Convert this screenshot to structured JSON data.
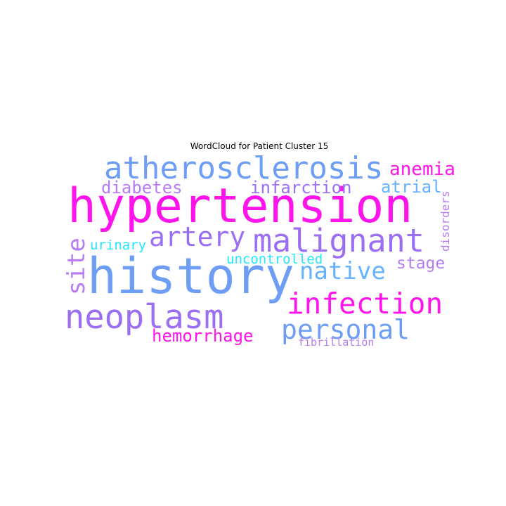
{
  "title": "WordCloud for Patient Cluster 15",
  "colors": {
    "magenta": "#FF14EC",
    "violet": "#9B6FF3",
    "blue": "#6E9DF6",
    "sky": "#66B2FF",
    "cyan": "#25E6FF",
    "lilac": "#B67CF4"
  },
  "words": [
    {
      "text": "hypertension"
    },
    {
      "text": "history"
    },
    {
      "text": "atherosclerosis"
    },
    {
      "text": "malignant"
    },
    {
      "text": "neoplasm"
    },
    {
      "text": "infection"
    },
    {
      "text": "personal"
    },
    {
      "text": "artery"
    },
    {
      "text": "native"
    },
    {
      "text": "site"
    },
    {
      "text": "anemia"
    },
    {
      "text": "diabetes"
    },
    {
      "text": "infarction"
    },
    {
      "text": "atrial"
    },
    {
      "text": "hemorrhage"
    },
    {
      "text": "stage"
    },
    {
      "text": "urinary"
    },
    {
      "text": "uncontrolled"
    },
    {
      "text": "disorders"
    },
    {
      "text": "fibrillation"
    }
  ]
}
